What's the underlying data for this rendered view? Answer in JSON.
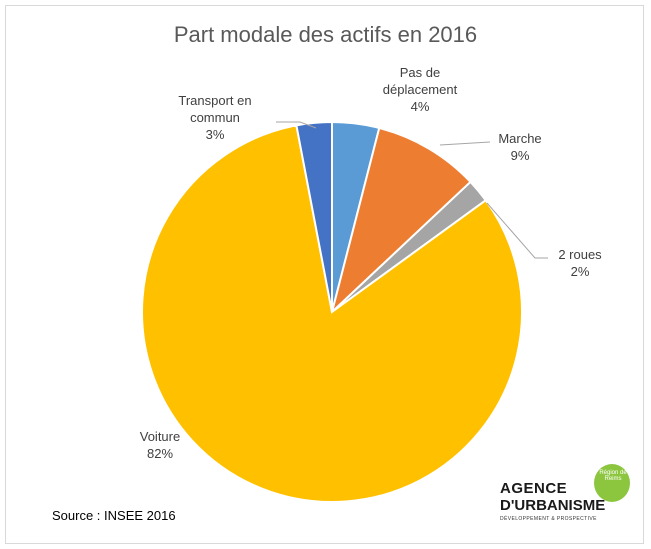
{
  "chart_data": {
    "type": "pie",
    "title": "Part modale des actifs en 2016",
    "categories": [
      "Pas de déplacement",
      "Marche",
      "2 roues",
      "Voiture",
      "Transport en commun"
    ],
    "values": [
      4,
      9,
      2,
      82,
      3
    ],
    "value_labels": [
      "4%",
      "9%",
      "2%",
      "82%",
      "3%"
    ],
    "colors": [
      "#5b9bd5",
      "#ed7d31",
      "#a5a5a5",
      "#ffc000",
      "#4472c4"
    ]
  },
  "source": "Source : INSEE 2016",
  "logo": {
    "line1": "AGENCE",
    "line2": "D'URBANISME",
    "tagline": "DÉVELOPPEMENT & PROSPECTIVE",
    "region": "Région de Reims"
  }
}
